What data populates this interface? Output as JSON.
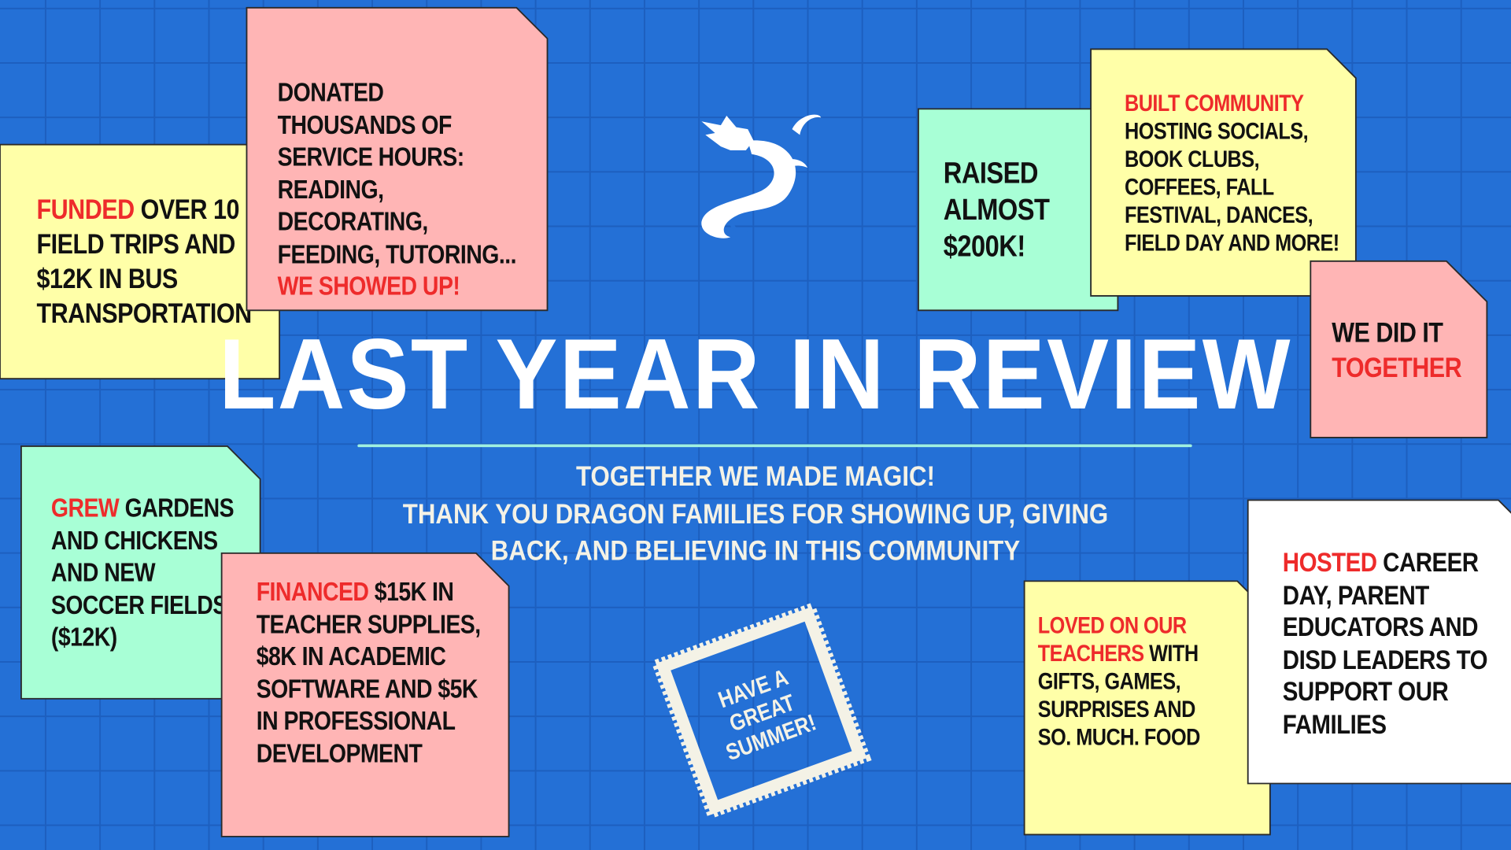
{
  "colors": {
    "background": "#2470d6",
    "grid": "#1d5fbf",
    "yellow": "#ffffa8",
    "pink": "#ffb5b5",
    "mint": "#a8ffd6",
    "white": "#ffffff",
    "accent_red": "#ee2b2b",
    "rule": "#9ff0e0"
  },
  "title": "LAST YEAR IN REVIEW",
  "subtitle": [
    "TOGETHER WE MADE MAGIC!",
    "THANK YOU DRAGON FAMILIES FOR SHOWING UP, GIVING",
    "BACK, AND BELIEVING IN THIS COMMUNITY"
  ],
  "logo": {
    "icon": "dragon-icon"
  },
  "stamp": [
    "HAVE A",
    "GREAT",
    "SUMMER!"
  ],
  "notes": [
    {
      "id": "field-trips",
      "color": "yellow",
      "lines": [
        [
          {
            "t": "FUNDED",
            "red": true
          },
          {
            "t": " OVER 10"
          }
        ],
        [
          {
            "t": "FIELD TRIPS AND"
          }
        ],
        [
          {
            "t": "$12K IN BUS"
          }
        ],
        [
          {
            "t": "TRANSPORTATION"
          }
        ]
      ]
    },
    {
      "id": "service-hours",
      "color": "pink",
      "lines": [
        [
          {
            "t": "DONATED"
          }
        ],
        [
          {
            "t": "THOUSANDS OF"
          }
        ],
        [
          {
            "t": "SERVICE HOURS:"
          }
        ],
        [
          {
            "t": "READING,"
          }
        ],
        [
          {
            "t": "DECORATING,"
          }
        ],
        [
          {
            "t": "FEEDING, TUTORING..."
          }
        ],
        [
          {
            "t": "WE SHOWED UP!",
            "red": true
          }
        ]
      ]
    },
    {
      "id": "raised",
      "color": "mint",
      "lines": [
        [
          {
            "t": "RAISED"
          }
        ],
        [
          {
            "t": "ALMOST"
          }
        ],
        [
          {
            "t": "$200K!"
          }
        ]
      ]
    },
    {
      "id": "community",
      "color": "yellow",
      "lines": [
        [
          {
            "t": "BUILT COMMUNITY",
            "red": true
          }
        ],
        [
          {
            "t": "HOSTING SOCIALS,"
          }
        ],
        [
          {
            "t": "BOOK CLUBS,"
          }
        ],
        [
          {
            "t": "COFFEES, FALL"
          }
        ],
        [
          {
            "t": "FESTIVAL, DANCES,"
          }
        ],
        [
          {
            "t": "FIELD DAY AND MORE!"
          }
        ]
      ]
    },
    {
      "id": "together",
      "color": "pink",
      "lines": [
        [
          {
            "t": "WE DID IT"
          }
        ],
        [
          {
            "t": "TOGETHER",
            "red": true
          }
        ]
      ]
    },
    {
      "id": "gardens",
      "color": "mint",
      "lines": [
        [
          {
            "t": "GREW",
            "red": true
          },
          {
            "t": " GARDENS"
          }
        ],
        [
          {
            "t": "AND CHICKENS"
          }
        ],
        [
          {
            "t": "AND NEW"
          }
        ],
        [
          {
            "t": "SOCCER FIELDS"
          }
        ],
        [
          {
            "t": "($12K)"
          }
        ]
      ]
    },
    {
      "id": "financed",
      "color": "pink",
      "lines": [
        [
          {
            "t": "FINANCED",
            "red": true
          },
          {
            "t": " $15K IN"
          }
        ],
        [
          {
            "t": "TEACHER SUPPLIES,"
          }
        ],
        [
          {
            "t": "$8K IN ACADEMIC"
          }
        ],
        [
          {
            "t": "SOFTWARE AND $5K"
          }
        ],
        [
          {
            "t": "IN PROFESSIONAL"
          }
        ],
        [
          {
            "t": "DEVELOPMENT"
          }
        ]
      ]
    },
    {
      "id": "teachers",
      "color": "yellow",
      "lines": [
        [
          {
            "t": "LOVED ON OUR",
            "red": true
          }
        ],
        [
          {
            "t": "TEACHERS",
            "red": true
          },
          {
            "t": " WITH"
          }
        ],
        [
          {
            "t": "GIFTS, GAMES,"
          }
        ],
        [
          {
            "t": "SURPRISES AND"
          }
        ],
        [
          {
            "t": "SO. MUCH. FOOD"
          }
        ]
      ]
    },
    {
      "id": "hosted",
      "color": "white",
      "lines": [
        [
          {
            "t": "HOSTED",
            "red": true
          },
          {
            "t": " CAREER"
          }
        ],
        [
          {
            "t": "DAY, PARENT"
          }
        ],
        [
          {
            "t": "EDUCATORS AND"
          }
        ],
        [
          {
            "t": "DISD LEADERS TO"
          }
        ],
        [
          {
            "t": "SUPPORT OUR"
          }
        ],
        [
          {
            "t": "FAMILIES"
          }
        ]
      ]
    }
  ]
}
